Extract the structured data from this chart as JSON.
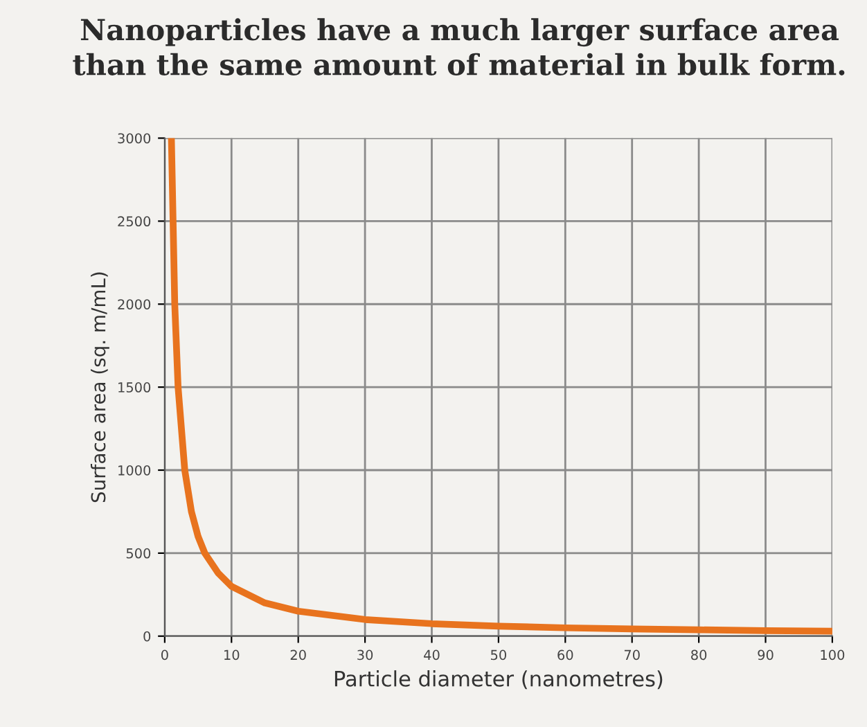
{
  "chart_data": {
    "type": "line",
    "title": "Nanoparticles have a much larger surface area\nthan the same amount of material in bulk form.",
    "xlabel": "Particle diameter (nanometres)",
    "ylabel": "Surface area (sq. m/mL)",
    "x": [
      1,
      1.5,
      2,
      3,
      4,
      5,
      6,
      8,
      10,
      15,
      20,
      30,
      40,
      50,
      60,
      70,
      80,
      90,
      100
    ],
    "series": [
      {
        "color": "#e8731e",
        "values": [
          3000,
          2000,
          1500,
          1000,
          750,
          600,
          500,
          380,
          300,
          200,
          150,
          100,
          75,
          60,
          50,
          43,
          38,
          33,
          30
        ]
      }
    ],
    "xlim": [
      0,
      100
    ],
    "ylim": [
      0,
      3000
    ],
    "xticks": [
      0,
      10,
      20,
      30,
      40,
      50,
      60,
      70,
      80,
      90,
      100
    ],
    "yticks": [
      0,
      500,
      1000,
      1500,
      2000,
      2500,
      3000
    ],
    "grid": true,
    "marker": "none",
    "line_style": "solid",
    "legend": false
  }
}
